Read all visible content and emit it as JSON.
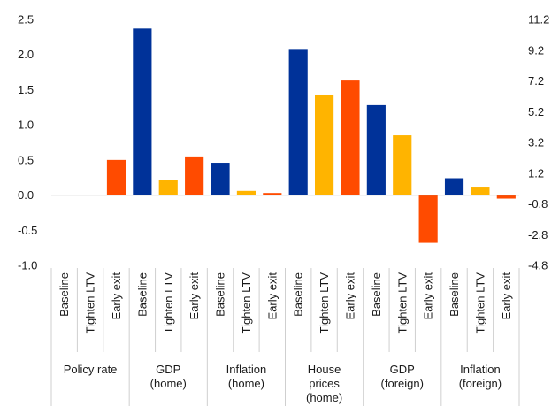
{
  "chart_data": {
    "type": "bar",
    "title": "",
    "xlabel": "",
    "ylabel": "",
    "ylim": [
      -1.0,
      2.5
    ],
    "y_ticks": [
      "2.5",
      "2.0",
      "1.5",
      "1.0",
      "0.5",
      "0.0",
      "-0.5",
      "-1.0"
    ],
    "y2lim": [
      -4.8,
      11.2
    ],
    "y2_ticks": [
      "11.2",
      "9.2",
      "7.2",
      "5.2",
      "3.2",
      "1.2",
      "-0.8",
      "-2.8",
      "-4.8"
    ],
    "grid": false,
    "legend": "none",
    "scenario_colors": {
      "Baseline": "#003299",
      "Tighten LTV": "#ffb400",
      "Early exit": "#ff4b00"
    },
    "groups": [
      {
        "label": [
          "Policy rate"
        ],
        "bars": [
          {
            "category": "Baseline",
            "value": 0.0
          },
          {
            "category": "Tighten LTV",
            "value": 0.0
          },
          {
            "category": "Early exit",
            "value": 0.5
          }
        ]
      },
      {
        "label": [
          "GDP",
          "(home)"
        ],
        "bars": [
          {
            "category": "Baseline",
            "value": 2.37
          },
          {
            "category": "Tighten LTV",
            "value": 0.21
          },
          {
            "category": "Early exit",
            "value": 0.55
          }
        ]
      },
      {
        "label": [
          "Inflation",
          "(home)"
        ],
        "bars": [
          {
            "category": "Baseline",
            "value": 0.46
          },
          {
            "category": "Tighten LTV",
            "value": 0.06
          },
          {
            "category": "Early exit",
            "value": 0.03
          }
        ]
      },
      {
        "label": [
          "House",
          "prices",
          "(home)"
        ],
        "bars": [
          {
            "category": "Baseline",
            "value": 2.08
          },
          {
            "category": "Tighten LTV",
            "value": 1.43
          },
          {
            "category": "Early exit",
            "value": 1.63
          }
        ]
      },
      {
        "label": [
          "GDP",
          "(foreign)"
        ],
        "bars": [
          {
            "category": "Baseline",
            "value": 1.28
          },
          {
            "category": "Tighten LTV",
            "value": 0.85
          },
          {
            "category": "Early exit",
            "value": -0.68
          }
        ]
      },
      {
        "label": [
          "Inflation",
          "(foreign)"
        ],
        "bars": [
          {
            "category": "Baseline",
            "value": 0.24
          },
          {
            "category": "Tighten LTV",
            "value": 0.12
          },
          {
            "category": "Early exit",
            "value": -0.05
          }
        ]
      }
    ]
  }
}
